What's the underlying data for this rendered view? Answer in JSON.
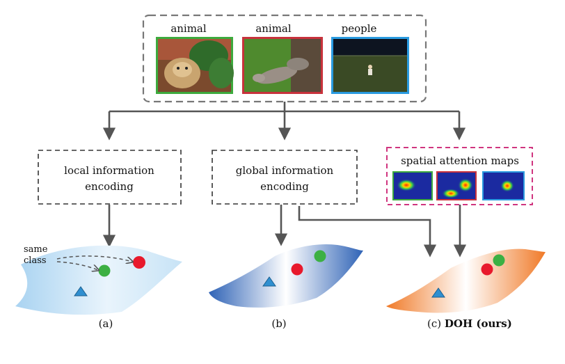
{
  "inputs": {
    "images": [
      {
        "label": "animal",
        "border_color": "#3daa3d"
      },
      {
        "label": "animal",
        "border_color": "#c8323c"
      },
      {
        "label": "people",
        "border_color": "#2a9be0"
      }
    ]
  },
  "branches": {
    "local": {
      "line1": "local information",
      "line2": "encoding"
    },
    "global": {
      "line1": "global information",
      "line2": "encoding"
    },
    "attention": {
      "title": "spatial attention maps"
    }
  },
  "annotation": {
    "line1": "same",
    "line2": "class"
  },
  "captions": {
    "a": "(a)",
    "b": "(b)",
    "c_prefix": "(c) ",
    "c_bold": "DOH (ours)"
  },
  "colors": {
    "dash_gray": "#777777",
    "arrow_gray": "#555555",
    "attention_border": "#d0357f",
    "circle_red": "#e8192c",
    "circle_green": "#3cb043",
    "triangle_blue": "#2f8fd0"
  }
}
